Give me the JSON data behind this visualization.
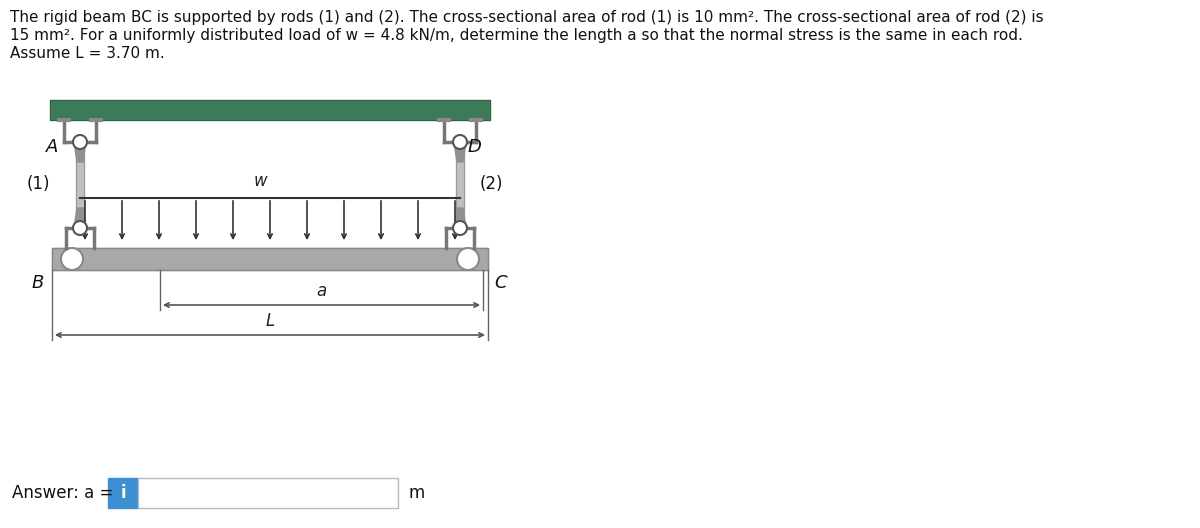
{
  "fig_width": 12.0,
  "fig_height": 5.28,
  "dpi": 100,
  "text_line1": "The rigid beam BC is supported by rods (1) and (2). The cross-sectional area of rod (1) is 10 mm². The cross-sectional area of rod (2) is",
  "text_line2": "15 mm². For a uniformly distributed load of w = 4.8 kN/m, determine the length a so that the normal stress is the same in each rod.",
  "text_line3": "Assume L = 3.70 m.",
  "bg_color": "#ffffff",
  "wall_color": "#3d7a5a",
  "beam_color": "#a8a8a8",
  "rod_color": "#b8b8b8",
  "answer_box_color": "#3d8fd4",
  "clevis_color": "#606060",
  "bracket_color": "#888888"
}
